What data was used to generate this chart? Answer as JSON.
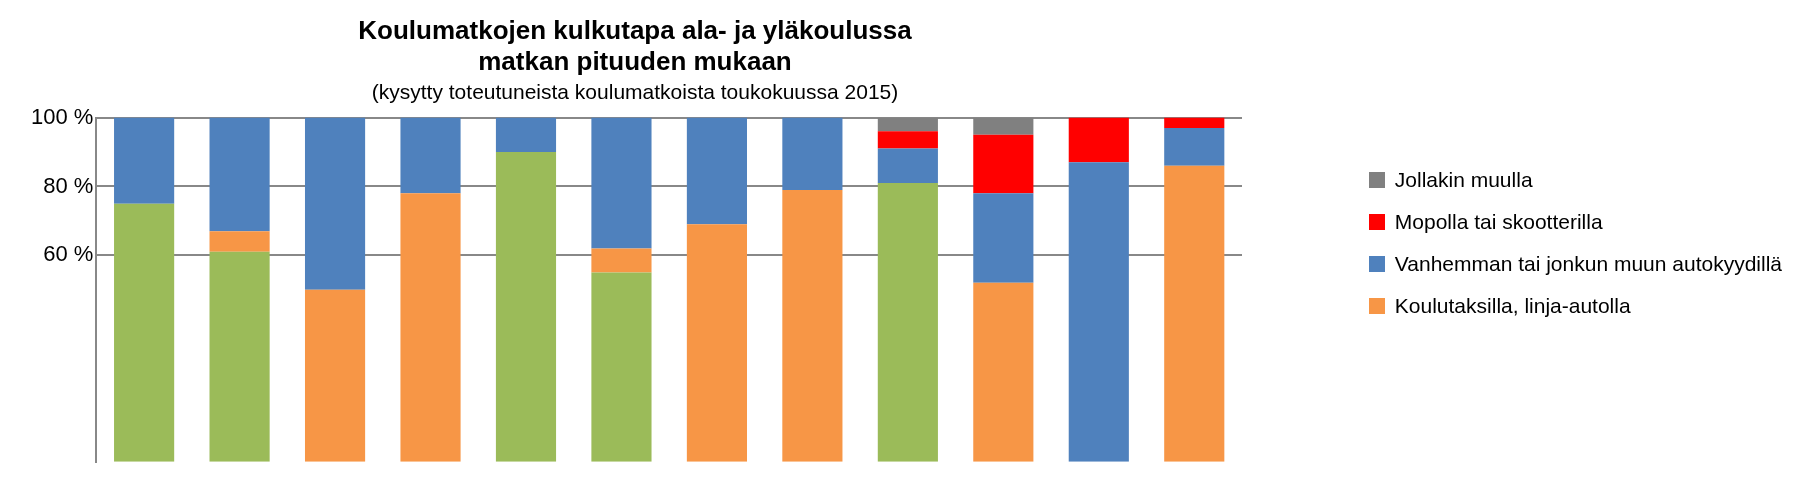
{
  "chart_data": {
    "type": "bar",
    "title": [
      "Koulumatkojen kulkutapa ala- ja yläkoulussa",
      "matkan pituuden mukaan"
    ],
    "subtitle": "(kysytty toteutuneista koulumatkoista toukokuussa 2015)",
    "categories": [
      null,
      null,
      null,
      null,
      null,
      null,
      null,
      null,
      null,
      null,
      null,
      null
    ],
    "stacked": true,
    "series": [
      {
        "color": "#9bbb59",
        "values": [
          75,
          61,
          null,
          null,
          90,
          55,
          null,
          null,
          81,
          null,
          null,
          null
        ]
      },
      {
        "name": "Koulutaksilla, linja-autolla",
        "color": "#f79646",
        "values": [
          null,
          6,
          50,
          78,
          null,
          7,
          69,
          79,
          null,
          52,
          null,
          86
        ]
      },
      {
        "name": "Vanhemman tai jonkun muun autokyydillä",
        "color": "#4f81bd",
        "values": [
          25,
          33,
          50,
          22,
          10,
          38,
          31,
          21,
          10,
          26,
          87,
          11
        ]
      },
      {
        "name": "Mopolla tai skootterilla",
        "color": "#ff0000",
        "values": [
          null,
          null,
          null,
          null,
          null,
          null,
          null,
          null,
          5,
          17,
          13,
          3
        ]
      },
      {
        "name": "Jollakin muulla",
        "color": "#808080",
        "values": [
          null,
          null,
          null,
          null,
          null,
          null,
          null,
          null,
          4,
          5,
          null,
          null
        ]
      }
    ],
    "ylim": [
      0,
      100
    ],
    "yticks": [
      {
        "value": 60,
        "label": "60 %"
      },
      {
        "value": 80,
        "label": "80 %"
      },
      {
        "value": 100,
        "label": "100 %"
      }
    ],
    "grid": "y",
    "legend": "right"
  }
}
